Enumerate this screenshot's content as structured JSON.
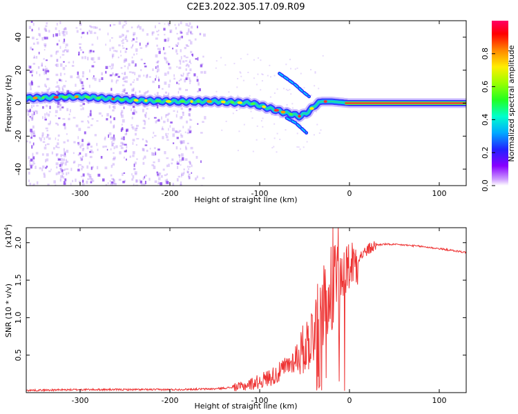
{
  "title": "C2E3.2022.305.17.09.R09",
  "colors": {
    "snr_line": "#ee3333",
    "ridge_core": "#ff3030",
    "ridge_mid": "#20e0a0",
    "ridge_edge": "#2020ff",
    "noise": "#8844ee",
    "axis": "#000000"
  },
  "chart_data": [
    {
      "type": "heatmap",
      "title": "C2E3.2022.305.17.09.R09",
      "xlabel": "Height of straight line (km)",
      "ylabel": "Frequency (Hz)",
      "xlim": [
        -360,
        130
      ],
      "ylim": [
        -50,
        50
      ],
      "xticks": [
        -300,
        -200,
        -100,
        0,
        100
      ],
      "yticks": [
        -40,
        -20,
        0,
        20,
        40
      ],
      "xtick_labels": [
        "-300",
        "-200",
        "-100",
        "0",
        "100"
      ],
      "ytick_labels": [
        "-40",
        "-20",
        "0",
        "20",
        "40"
      ],
      "ridge": {
        "x": [
          -360,
          -300,
          -250,
          -200,
          -150,
          -110,
          -90,
          -70,
          -55,
          -45,
          -38,
          -30,
          -20,
          -10,
          0,
          130
        ],
        "freq": [
          3,
          4,
          2,
          1,
          1,
          0,
          -3,
          -6,
          -8,
          -5,
          -1,
          1,
          1,
          0.5,
          0,
          0
        ]
      },
      "arc_branch": {
        "x": [
          -78,
          -70,
          -60,
          -52,
          -45
        ],
        "freq": [
          18,
          15,
          11,
          7,
          4
        ]
      },
      "lower_branch": {
        "x": [
          -70,
          -60,
          -52,
          -48
        ],
        "freq": [
          -9,
          -12,
          -16,
          -18
        ]
      },
      "colorbar": {
        "label": "Normalized spectral amplitude",
        "range": [
          0,
          1
        ],
        "ticks": [
          0.0,
          0.2,
          0.4,
          0.6,
          0.8
        ],
        "tick_labels": [
          "0.0",
          "0.2",
          "0.4",
          "0.6",
          "0.8"
        ],
        "colormap": "rainbow"
      }
    },
    {
      "type": "line",
      "xlabel": "Height of straight line (km)",
      "ylabel": "SNR (10 * v/v)",
      "y_multiplier_label": "(x10",
      "y_multiplier_exp": "4",
      "y_multiplier_close": ")",
      "xlim": [
        -360,
        130
      ],
      "ylim": [
        0,
        2.2
      ],
      "xticks": [
        -300,
        -200,
        -100,
        0,
        100
      ],
      "yticks": [
        0.5,
        1.0,
        1.5,
        2.0
      ],
      "xtick_labels": [
        "-300",
        "-200",
        "-100",
        "0",
        "100"
      ],
      "ytick_labels": [
        "0.5",
        "1.0",
        "1.5",
        "2.0"
      ],
      "series": [
        {
          "x": [
            -360,
            -300,
            -200,
            -150,
            -120,
            -100,
            -80,
            -60,
            -50,
            -40,
            -30,
            -25,
            -20,
            -15,
            -10,
            0,
            10,
            20,
            30,
            40,
            60,
            80,
            100,
            130
          ],
          "y": [
            0.03,
            0.04,
            0.04,
            0.05,
            0.08,
            0.15,
            0.25,
            0.45,
            0.6,
            0.8,
            1.1,
            1.3,
            1.4,
            1.5,
            1.6,
            1.7,
            1.8,
            1.9,
            1.97,
            1.98,
            1.97,
            1.95,
            1.92,
            1.87
          ]
        }
      ]
    }
  ]
}
